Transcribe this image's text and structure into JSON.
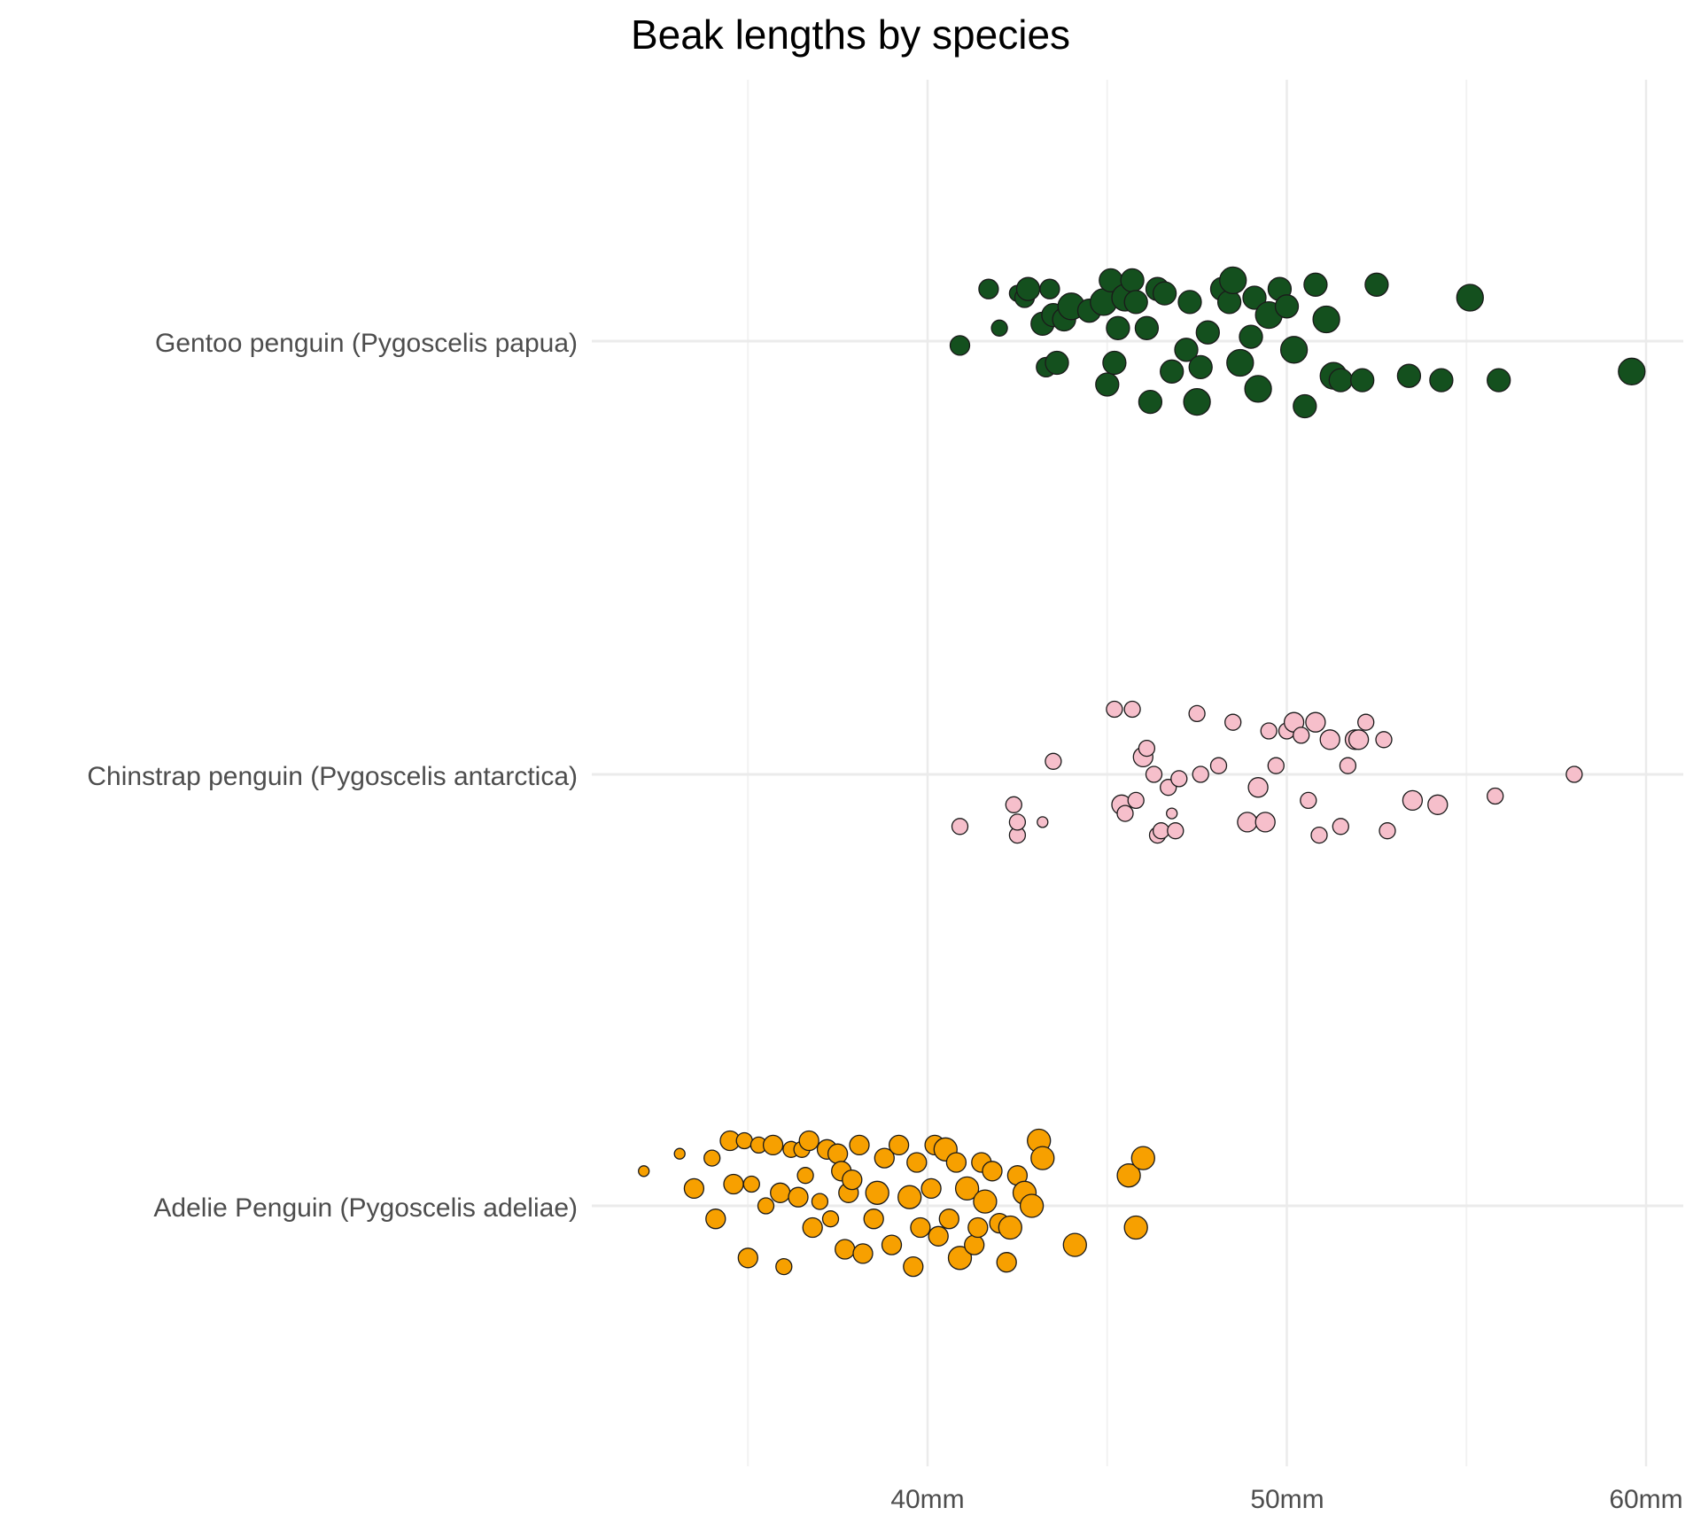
{
  "chart_data": {
    "type": "scatter",
    "title": "Beak lengths by species",
    "xlabel": "",
    "ylabel": "",
    "xlim": [
      31.5,
      60.8
    ],
    "x_ticks": [
      40,
      50,
      60
    ],
    "x_tick_labels": [
      "40mm",
      "50mm",
      "60mm"
    ],
    "x_minor_gridlines": [
      35,
      45,
      55
    ],
    "grid": true,
    "legend": "none",
    "categories": [
      "Gentoo penguin (Pygoscelis papua)",
      "Chinstrap penguin (Pygoscelis antarctica)",
      "Adelie Penguin (Pygoscelis adeliae)"
    ],
    "series": [
      {
        "category": "Gentoo penguin (Pygoscelis papua)",
        "color": "#14501e",
        "x": [
          40.9,
          41.7,
          42.0,
          42.5,
          42.7,
          42.8,
          43.2,
          43.3,
          43.4,
          43.5,
          43.6,
          43.8,
          44.0,
          44.5,
          44.9,
          45.0,
          45.1,
          45.2,
          45.3,
          45.5,
          45.7,
          45.8,
          46.1,
          46.2,
          46.4,
          46.6,
          46.8,
          47.2,
          47.3,
          47.5,
          47.6,
          47.8,
          48.2,
          48.4,
          48.5,
          48.7,
          49.0,
          49.1,
          49.2,
          49.5,
          49.8,
          50.0,
          50.2,
          50.5,
          50.8,
          51.1,
          51.3,
          51.5,
          52.1,
          52.5,
          53.4,
          54.3,
          55.1,
          55.9,
          59.6
        ],
        "y_jitter": [
          -0.01,
          0.12,
          0.03,
          0.11,
          0.1,
          0.12,
          0.04,
          -0.06,
          0.12,
          0.06,
          -0.05,
          0.05,
          0.08,
          0.07,
          0.09,
          -0.1,
          0.14,
          -0.05,
          0.03,
          0.1,
          0.14,
          0.09,
          0.03,
          -0.14,
          0.12,
          0.11,
          -0.07,
          -0.02,
          0.09,
          -0.14,
          -0.06,
          0.02,
          0.12,
          0.09,
          0.14,
          -0.05,
          0.01,
          0.1,
          -0.11,
          0.06,
          0.12,
          0.08,
          -0.02,
          -0.15,
          0.13,
          0.05,
          -0.08,
          -0.09,
          -0.09,
          0.13,
          -0.08,
          -0.09,
          0.1,
          -0.09,
          -0.07
        ],
        "size": [
          2,
          2,
          1,
          1,
          2,
          3,
          3,
          2,
          2,
          3,
          3,
          3,
          4,
          3,
          4,
          3,
          3,
          3,
          3,
          4,
          3,
          3,
          3,
          3,
          3,
          3,
          3,
          3,
          3,
          4,
          3,
          3,
          3,
          3,
          4,
          4,
          3,
          3,
          4,
          4,
          3,
          3,
          4,
          3,
          3,
          4,
          4,
          3,
          3,
          3,
          3,
          3,
          4,
          3,
          4
        ]
      },
      {
        "category": "Chinstrap penguin (Pygoscelis antarctica)",
        "color": "#f6bfcb",
        "x": [
          40.9,
          42.4,
          42.5,
          42.5,
          43.2,
          43.5,
          45.2,
          45.4,
          45.5,
          45.7,
          45.8,
          46.0,
          46.1,
          46.3,
          46.4,
          46.5,
          46.7,
          46.8,
          46.9,
          47.0,
          47.5,
          47.6,
          48.1,
          48.5,
          48.9,
          49.2,
          49.4,
          49.5,
          49.7,
          50.0,
          50.2,
          50.4,
          50.6,
          50.8,
          50.9,
          51.2,
          51.5,
          51.7,
          51.9,
          52.0,
          52.2,
          52.7,
          52.8,
          53.5,
          54.2,
          55.8,
          58.0
        ],
        "y_jitter": [
          -0.12,
          -0.07,
          -0.14,
          -0.11,
          -0.11,
          0.03,
          0.15,
          -0.07,
          -0.09,
          0.15,
          -0.06,
          0.04,
          0.06,
          0.0,
          -0.14,
          -0.13,
          -0.03,
          -0.09,
          -0.13,
          -0.01,
          0.14,
          0.0,
          0.02,
          0.12,
          -0.11,
          -0.03,
          -0.11,
          0.1,
          0.02,
          0.1,
          0.12,
          0.09,
          -0.06,
          0.12,
          -0.14,
          0.08,
          -0.12,
          0.02,
          0.08,
          0.08,
          0.12,
          0.08,
          -0.13,
          -0.06,
          -0.07,
          -0.05,
          0.0
        ],
        "size": [
          1,
          1,
          1,
          1,
          0,
          1,
          1,
          2,
          1,
          1,
          1,
          2,
          1,
          1,
          1,
          1,
          1,
          0,
          1,
          1,
          1,
          1,
          1,
          1,
          2,
          2,
          2,
          1,
          1,
          1,
          2,
          1,
          1,
          2,
          1,
          2,
          1,
          1,
          2,
          2,
          1,
          1,
          1,
          2,
          2,
          1,
          1
        ]
      },
      {
        "category": "Adelie Penguin (Pygoscelis adeliae)",
        "color": "#f7a000",
        "x": [
          32.1,
          33.1,
          33.5,
          34.0,
          34.1,
          34.5,
          34.6,
          34.9,
          35.0,
          35.1,
          35.3,
          35.5,
          35.7,
          35.9,
          36.0,
          36.2,
          36.4,
          36.5,
          36.6,
          36.7,
          36.8,
          37.0,
          37.2,
          37.3,
          37.5,
          37.6,
          37.7,
          37.8,
          37.9,
          38.1,
          38.2,
          38.5,
          38.6,
          38.8,
          39.0,
          39.2,
          39.5,
          39.6,
          39.7,
          39.8,
          40.1,
          40.2,
          40.3,
          40.5,
          40.6,
          40.8,
          40.9,
          41.1,
          41.3,
          41.4,
          41.5,
          41.6,
          41.8,
          42.0,
          42.2,
          42.3,
          42.5,
          42.7,
          42.9,
          43.1,
          43.2,
          44.1,
          45.6,
          45.8,
          46.0
        ],
        "y_jitter": [
          0.08,
          0.12,
          0.04,
          0.11,
          -0.03,
          0.15,
          0.05,
          0.15,
          -0.12,
          0.05,
          0.14,
          0.0,
          0.14,
          0.03,
          -0.14,
          0.13,
          0.02,
          0.13,
          0.07,
          0.15,
          -0.05,
          0.01,
          0.13,
          -0.03,
          0.12,
          0.08,
          -0.1,
          0.03,
          0.06,
          0.14,
          -0.11,
          -0.03,
          0.03,
          0.11,
          -0.09,
          0.14,
          0.02,
          -0.14,
          0.1,
          -0.05,
          0.04,
          0.14,
          -0.07,
          0.13,
          -0.03,
          0.1,
          -0.12,
          0.04,
          -0.09,
          -0.05,
          0.1,
          0.01,
          0.08,
          -0.04,
          -0.13,
          -0.05,
          0.07,
          0.03,
          0.0,
          0.15,
          0.11,
          -0.09,
          0.07,
          -0.05,
          0.11
        ],
        "size": [
          0,
          0,
          2,
          1,
          2,
          2,
          2,
          1,
          2,
          1,
          1,
          1,
          2,
          2,
          1,
          1,
          2,
          1,
          1,
          2,
          2,
          1,
          2,
          1,
          2,
          2,
          2,
          2,
          2,
          2,
          2,
          2,
          3,
          2,
          2,
          2,
          3,
          2,
          2,
          2,
          2,
          2,
          2,
          3,
          2,
          2,
          3,
          3,
          2,
          2,
          2,
          3,
          2,
          2,
          2,
          3,
          2,
          3,
          3,
          3,
          3,
          3,
          3,
          3,
          3
        ]
      }
    ]
  }
}
